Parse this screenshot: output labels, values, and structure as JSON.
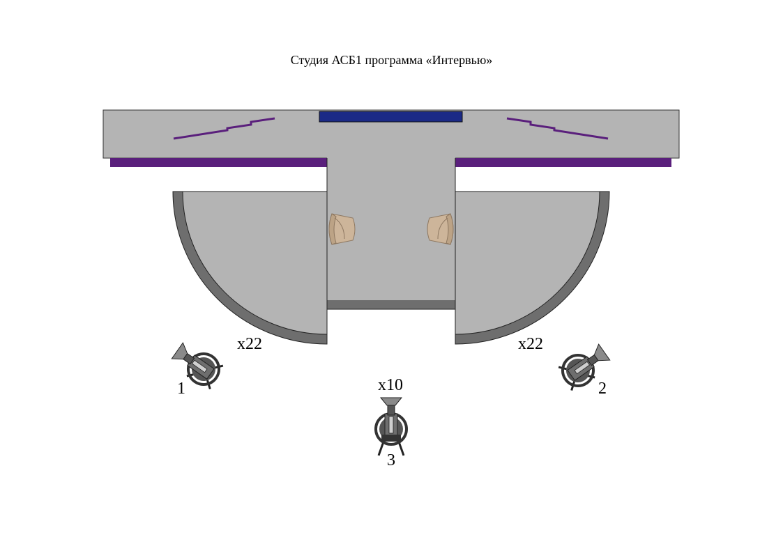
{
  "title": "Студия АСБ1 программа «Интервью»",
  "cameras": [
    {
      "number": "1",
      "zoom": "x22"
    },
    {
      "number": "2",
      "zoom": "x22"
    },
    {
      "number": "3",
      "zoom": "x10"
    }
  ],
  "colors": {
    "floor": "#b4b4b4",
    "wall_dark": "#6e6e6e",
    "purple": "#5a1f7c",
    "screen_blue": "#1b2a86",
    "chair": "#cdb59a",
    "camera": "#555555"
  }
}
